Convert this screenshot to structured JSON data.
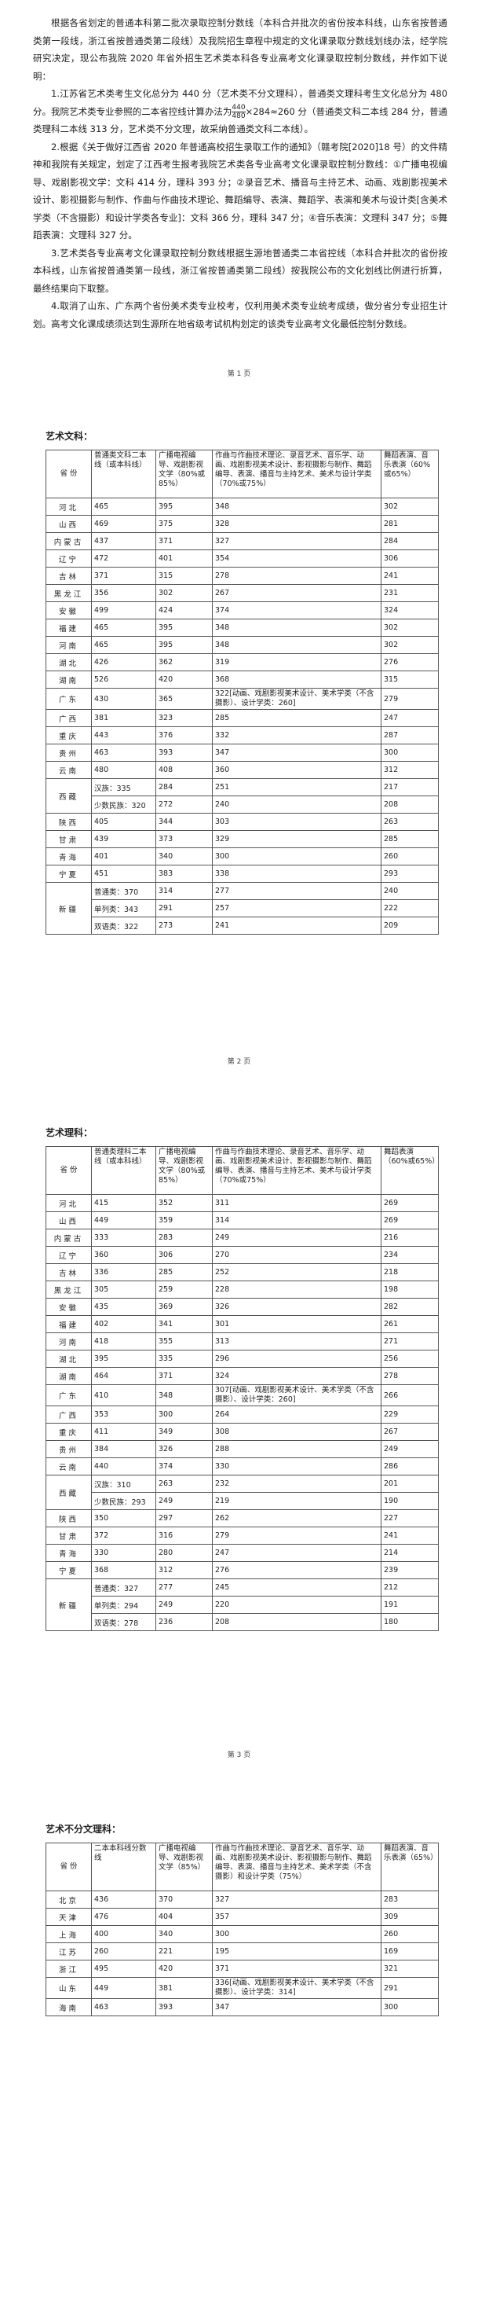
{
  "page1": {
    "intro": "根据各省划定的普通本科第二批次录取控制分数线（本科合并批次的省份按本科线，山东省按普通类第一段线，浙江省按普通类第二段线）及我院招生章程中规定的文化课录取分数线划线办法，经学院研究决定，现公布我院 2020 年省外招生艺术类本科各专业高考文化课录取控制分数线，并作如下说明：",
    "item1": {
      "before": "1.江苏省艺术类考生文化总分为 440 分（艺术类不分文理科），普通类文理科考生文化总分为 480 分。我院艺术类专业参照的二本省控线计算办法为",
      "numerator": "440",
      "denominator": "480",
      "after": "×284≈260 分（普通类文科二本线 284 分，普通类理科二本线 313 分，艺术类不分文理，故采纳普通类文科二本线）。"
    },
    "items": [
      "2.根据《关于做好江西省 2020 年普通高校招生录取工作的通知》（赣考院[2020]18 号）的文件精神和我院有关规定，划定了江西考生报考我院艺术类各专业高考文化课录取控制分数线：①广播电视编导、戏剧影视文学：文科 414 分，理科 393 分；②录音艺术、播音与主持艺术、动画、戏剧影视美术设计、影视摄影与制作、作曲与作曲技术理论、舞蹈编导、表演、舞蹈学、表演和美术与设计类[含美术学类（不含摄影）和设计学类各专业]：文科 366 分，理科 347 分；④音乐表演：文理科 347 分；⑤舞蹈表演：文理科 327 分。",
      "3.艺术类各专业高考文化课录取控制分数线根据生源地普通类二本省控线（本科合并批次的省份按本科线，山东省按普通类第一段线，浙江省按普通类第二段线）按我院公布的文化划线比例进行折算，最终结果向下取整。",
      "4.取消了山东、广东两个省份美术类专业校考，仅利用美术类专业统考成绩，做分省分专业招生计划。高考文化课成绩须达到生源所在地省级考试机构划定的该类专业高考文化最低控制分数线。"
    ]
  },
  "page_numbers": [
    "第 1 页",
    "第 2 页",
    "第 3 页"
  ],
  "tables": [
    {
      "title": "艺术文科：",
      "header": [
        "省 份",
        "普通类文科二本线（或本科线）",
        "广播电视编导、戏剧影视文学（80%或85%）",
        "作曲与作曲技术理论、录音艺术、音乐学、动画、戏剧影视美术设计、影视摄影与制作、舞蹈编导、表演、播音与主持艺术、美术与设计学类（70%或75%）",
        "舞蹈表演、音乐表演（60%或65%）"
      ],
      "rows": [
        {
          "province": "河北",
          "cells": [
            "465",
            "395",
            "348",
            "302"
          ]
        },
        {
          "province": "山西",
          "cells": [
            "469",
            "375",
            "328",
            "281"
          ]
        },
        {
          "province": "内蒙古",
          "cells": [
            "437",
            "371",
            "327",
            "284"
          ]
        },
        {
          "province": "辽宁",
          "cells": [
            "472",
            "401",
            "354",
            "306"
          ]
        },
        {
          "province": "吉林",
          "cells": [
            "371",
            "315",
            "278",
            "241"
          ]
        },
        {
          "province": "黑龙江",
          "cells": [
            "356",
            "302",
            "267",
            "231"
          ]
        },
        {
          "province": "安徽",
          "cells": [
            "499",
            "424",
            "374",
            "324"
          ]
        },
        {
          "province": "福建",
          "cells": [
            "465",
            "395",
            "348",
            "302"
          ]
        },
        {
          "province": "河南",
          "cells": [
            "465",
            "395",
            "348",
            "302"
          ]
        },
        {
          "province": "湖北",
          "cells": [
            "426",
            "362",
            "319",
            "276"
          ]
        },
        {
          "province": "湖南",
          "cells": [
            "526",
            "420",
            "368",
            "315"
          ]
        },
        {
          "province": "广东",
          "cells": [
            "430",
            "365",
            "322[动画、戏剧影视美术设计、美术学类（不含摄影）、设计学类：260]",
            "279"
          ]
        },
        {
          "province": "广西",
          "cells": [
            "381",
            "323",
            "285",
            "247"
          ]
        },
        {
          "province": "重庆",
          "cells": [
            "443",
            "376",
            "332",
            "287"
          ]
        },
        {
          "province": "贵州",
          "cells": [
            "463",
            "393",
            "347",
            "300"
          ]
        },
        {
          "province": "云南",
          "cells": [
            "480",
            "408",
            "360",
            "312"
          ]
        },
        {
          "province": "西藏",
          "sub": [
            {
              "cells": [
                "汉族：335",
                "284",
                "251",
                "217"
              ]
            },
            {
              "cells": [
                "少数民族：320",
                "272",
                "240",
                "208"
              ]
            }
          ]
        },
        {
          "province": "陕西",
          "cells": [
            "405",
            "344",
            "303",
            "263"
          ]
        },
        {
          "province": "甘肃",
          "cells": [
            "439",
            "373",
            "329",
            "285"
          ]
        },
        {
          "province": "青海",
          "cells": [
            "401",
            "340",
            "300",
            "260"
          ]
        },
        {
          "province": "宁夏",
          "cells": [
            "451",
            "383",
            "338",
            "293"
          ]
        },
        {
          "province": "新疆",
          "sub": [
            {
              "cells": [
                "普通类：370",
                "314",
                "277",
                "240"
              ]
            },
            {
              "cells": [
                "单列类：343",
                "291",
                "257",
                "222"
              ]
            },
            {
              "cells": [
                "双语类：322",
                "273",
                "241",
                "209"
              ]
            }
          ]
        }
      ]
    },
    {
      "title": "艺术理科：",
      "header": [
        "省 份",
        "普通类理科二本线（或本科线）",
        "广播电视编导、戏剧影视文学（80%或85%）",
        "作曲与作曲技术理论、录音艺术、音乐学、动画、戏剧影视美术设计、影视摄影与制作、舞蹈编导、表演、播音与主持艺术、美术与设计学类（70%或75%）",
        "舞蹈表演（60%或65%）"
      ],
      "rows": [
        {
          "province": "河北",
          "cells": [
            "415",
            "352",
            "311",
            "269"
          ]
        },
        {
          "province": "山西",
          "cells": [
            "449",
            "359",
            "314",
            "269"
          ]
        },
        {
          "province": "内蒙古",
          "cells": [
            "333",
            "283",
            "249",
            "216"
          ]
        },
        {
          "province": "辽宁",
          "cells": [
            "360",
            "306",
            "270",
            "234"
          ]
        },
        {
          "province": "吉林",
          "cells": [
            "336",
            "285",
            "252",
            "218"
          ]
        },
        {
          "province": "黑龙江",
          "cells": [
            "305",
            "259",
            "228",
            "198"
          ]
        },
        {
          "province": "安徽",
          "cells": [
            "435",
            "369",
            "326",
            "282"
          ]
        },
        {
          "province": "福建",
          "cells": [
            "402",
            "341",
            "301",
            "261"
          ]
        },
        {
          "province": "河南",
          "cells": [
            "418",
            "355",
            "313",
            "271"
          ]
        },
        {
          "province": "湖北",
          "cells": [
            "395",
            "335",
            "296",
            "256"
          ]
        },
        {
          "province": "湖南",
          "cells": [
            "464",
            "371",
            "324",
            "278"
          ]
        },
        {
          "province": "广东",
          "cells": [
            "410",
            "348",
            "307[动画、戏剧影视美术设计、美术学类（不含摄影）、设计学类：260]",
            "266"
          ]
        },
        {
          "province": "广西",
          "cells": [
            "353",
            "300",
            "264",
            "229"
          ]
        },
        {
          "province": "重庆",
          "cells": [
            "411",
            "349",
            "308",
            "267"
          ]
        },
        {
          "province": "贵州",
          "cells": [
            "384",
            "326",
            "288",
            "249"
          ]
        },
        {
          "province": "云南",
          "cells": [
            "440",
            "374",
            "330",
            "286"
          ]
        },
        {
          "province": "西藏",
          "sub": [
            {
              "cells": [
                "汉族：310",
                "263",
                "232",
                "201"
              ]
            },
            {
              "cells": [
                "少数民族：293",
                "249",
                "219",
                "190"
              ]
            }
          ]
        },
        {
          "province": "陕西",
          "cells": [
            "350",
            "297",
            "262",
            "227"
          ]
        },
        {
          "province": "甘肃",
          "cells": [
            "372",
            "316",
            "279",
            "241"
          ]
        },
        {
          "province": "青海",
          "cells": [
            "330",
            "280",
            "247",
            "214"
          ]
        },
        {
          "province": "宁夏",
          "cells": [
            "368",
            "312",
            "276",
            "239"
          ]
        },
        {
          "province": "新疆",
          "sub": [
            {
              "cells": [
                "普通类：327",
                "277",
                "245",
                "212"
              ]
            },
            {
              "cells": [
                "单列类：294",
                "249",
                "220",
                "191"
              ]
            },
            {
              "cells": [
                "双语类：278",
                "236",
                "208",
                "180"
              ]
            }
          ]
        }
      ]
    },
    {
      "title": "艺术不分文理科：",
      "header": [
        "省 份",
        "二本本科线分数线",
        "广播电视编导、戏剧影视文学（85%）",
        "作曲与作曲技术理论、录音艺术、音乐学、动画、戏剧影视美术设计、影视摄影与制作、舞蹈编导、表演、播音与主持艺术、美术学类（不含摄影）和设计学类（75%）",
        "舞蹈表演、音乐表演（65%）"
      ],
      "rows": [
        {
          "province": "北京",
          "cells": [
            "436",
            "370",
            "327",
            "283"
          ]
        },
        {
          "province": "天津",
          "cells": [
            "476",
            "404",
            "357",
            "309"
          ]
        },
        {
          "province": "上海",
          "cells": [
            "400",
            "340",
            "300",
            "260"
          ]
        },
        {
          "province": "江苏",
          "cells": [
            "260",
            "221",
            "195",
            "169"
          ]
        },
        {
          "province": "浙江",
          "cells": [
            "495",
            "420",
            "371",
            "321"
          ]
        },
        {
          "province": "山东",
          "cells": [
            "449",
            "381",
            "336[动画、戏剧影视美术设计、美术学类（不含摄影）、设计学类：314]",
            "291"
          ]
        },
        {
          "province": "海南",
          "cells": [
            "463",
            "393",
            "347",
            "300"
          ]
        }
      ]
    }
  ]
}
